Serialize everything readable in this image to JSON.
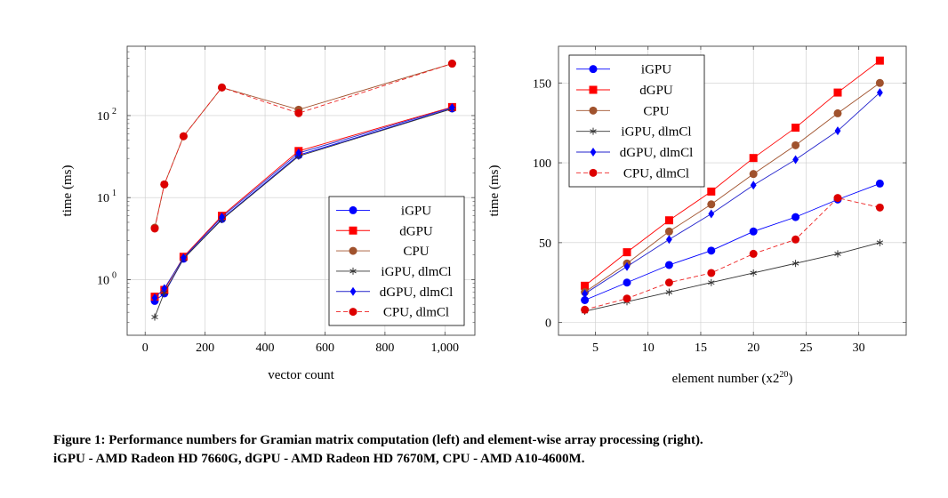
{
  "colors": {
    "iGPU": "#0000ff",
    "dGPU": "#ff0000",
    "CPU": "#a0522d",
    "iGPU_dlmCl": "#333333",
    "dGPU_dlmCl": "#2222cc",
    "CPU_dlmCl": "#ee2222",
    "marker_dGPU_dlmCl": "#0000ff",
    "marker_CPU_dlmCl": "#dd0000",
    "grid": "#cccccc"
  },
  "caption": {
    "line1": "Figure 1: Performance numbers for Gramian matrix computation (left) and element-wise array processing (right).",
    "line2": "iGPU - AMD Radeon HD 7660G, dGPU - AMD Radeon HD 7670M, CPU - AMD A10-4600M."
  },
  "chart_data": [
    {
      "type": "line",
      "xlabel": "vector count",
      "ylabel": "time (ms)",
      "yscale": "log",
      "xlim": [
        -60,
        1100
      ],
      "ylim": [
        0.21,
        700
      ],
      "grid": true,
      "legend_position": "bottom-right",
      "x_ticks": [
        0,
        200,
        400,
        600,
        800,
        1000
      ],
      "x_tick_labels": [
        "0",
        "200",
        "400",
        "600",
        "800",
        "1,000"
      ],
      "y_ticks": [
        1,
        10,
        100
      ],
      "y_tick_labels": [
        "10",
        "10",
        "10"
      ],
      "y_tick_exponents": [
        "0",
        "1",
        "2"
      ],
      "series": [
        {
          "name": "iGPU",
          "key": "iGPU",
          "marker": "circle",
          "dashed": false,
          "x": [
            32,
            64,
            128,
            256,
            512,
            1024
          ],
          "y": [
            0.55,
            0.68,
            1.8,
            5.5,
            33,
            122
          ]
        },
        {
          "name": "dGPU",
          "key": "dGPU",
          "marker": "square",
          "dashed": false,
          "x": [
            32,
            64,
            128,
            256,
            512,
            1024
          ],
          "y": [
            0.62,
            0.75,
            1.9,
            6.0,
            37,
            127
          ]
        },
        {
          "name": "CPU",
          "key": "CPU",
          "marker": "circle",
          "dashed": false,
          "x": [
            32,
            64,
            128,
            256,
            512,
            1024
          ],
          "y": [
            4.3,
            14.5,
            56,
            220,
            118,
            430
          ]
        },
        {
          "name": "iGPU, dlmCl",
          "key": "iGPU_dlmCl",
          "marker": "star",
          "dashed": false,
          "x": [
            32,
            64,
            128,
            256,
            512,
            1024
          ],
          "y": [
            0.35,
            0.7,
            1.8,
            5.4,
            32,
            121
          ]
        },
        {
          "name": "dGPU, dlmCl",
          "key": "dGPU_dlmCl",
          "marker": "diamond",
          "dashed": false,
          "x": [
            32,
            64,
            128,
            256,
            512,
            1024
          ],
          "y": [
            0.6,
            0.78,
            1.85,
            5.8,
            35,
            125
          ]
        },
        {
          "name": "CPU, dlmCl",
          "key": "CPU_dlmCl",
          "marker": "circle",
          "dashed": true,
          "x": [
            32,
            64,
            128,
            256,
            512,
            1024
          ],
          "y": [
            4.2,
            14.5,
            56,
            220,
            107,
            430
          ]
        }
      ]
    },
    {
      "type": "line",
      "xlabel": "element number (x2",
      "xlabel_exponent": "20",
      "xlabel_close": ")",
      "ylabel": "time (ms)",
      "yscale": "linear",
      "xlim": [
        1.5,
        34.5
      ],
      "ylim": [
        -8,
        173
      ],
      "grid": true,
      "legend_position": "top-left",
      "x_ticks": [
        5,
        10,
        15,
        20,
        25,
        30
      ],
      "x_tick_labels": [
        "5",
        "10",
        "15",
        "20",
        "25",
        "30"
      ],
      "y_ticks": [
        0,
        50,
        100,
        150
      ],
      "y_tick_labels": [
        "0",
        "50",
        "100",
        "150"
      ],
      "series": [
        {
          "name": "iGPU",
          "key": "iGPU",
          "marker": "circle",
          "dashed": false,
          "x": [
            4,
            8,
            12,
            16,
            20,
            24,
            28,
            32
          ],
          "y": [
            14,
            25,
            36,
            45,
            57,
            66,
            77,
            87
          ]
        },
        {
          "name": "dGPU",
          "key": "dGPU",
          "marker": "square",
          "dashed": false,
          "x": [
            4,
            8,
            12,
            16,
            20,
            24,
            28,
            32
          ],
          "y": [
            23,
            44,
            64,
            82,
            103,
            122,
            144,
            164
          ]
        },
        {
          "name": "CPU",
          "key": "CPU",
          "marker": "circle",
          "dashed": false,
          "x": [
            4,
            8,
            12,
            16,
            20,
            24,
            28,
            32
          ],
          "y": [
            19,
            37,
            57,
            74,
            93,
            111,
            131,
            150
          ]
        },
        {
          "name": "iGPU, dlmCl",
          "key": "iGPU_dlmCl",
          "marker": "star",
          "dashed": false,
          "x": [
            4,
            8,
            12,
            16,
            20,
            24,
            28,
            32
          ],
          "y": [
            7,
            13,
            19,
            25,
            31,
            37,
            43,
            50
          ]
        },
        {
          "name": "dGPU, dlmCl",
          "key": "dGPU_dlmCl",
          "marker": "diamond",
          "dashed": false,
          "x": [
            4,
            8,
            12,
            16,
            20,
            24,
            28,
            32
          ],
          "y": [
            18,
            35,
            52,
            68,
            86,
            102,
            120,
            144
          ]
        },
        {
          "name": "CPU, dlmCl",
          "key": "CPU_dlmCl",
          "marker": "circle",
          "dashed": true,
          "x": [
            4,
            8,
            12,
            16,
            20,
            24,
            28,
            32
          ],
          "y": [
            8,
            15,
            25,
            31,
            43,
            52,
            78,
            72
          ]
        }
      ]
    }
  ]
}
